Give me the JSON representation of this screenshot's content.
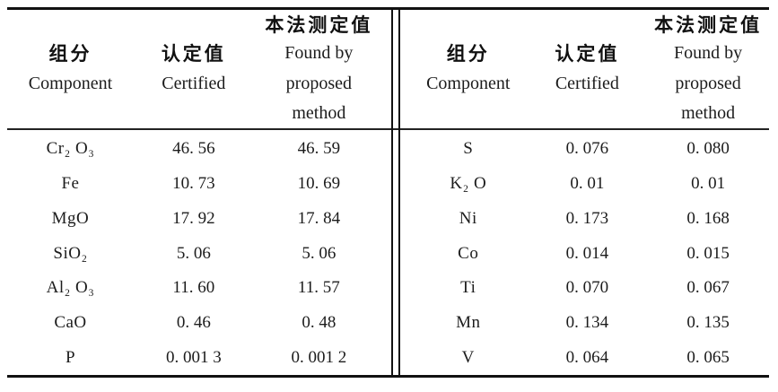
{
  "colors": {
    "background": "#ffffff",
    "text": "#1c1c1c",
    "rule": "#111111"
  },
  "header": {
    "component_zh": "组分",
    "component_en": "Component",
    "certified_zh": "认定值",
    "certified_en": "Certified",
    "found_zh": "本法测定值",
    "found_en_line1": "Found by",
    "found_en_line2": "proposed",
    "found_en_line3": "method"
  },
  "left_rows": [
    {
      "component": "Cr₂ O₃",
      "certified": "46. 56",
      "found": "46. 59"
    },
    {
      "component": "Fe",
      "certified": "10. 73",
      "found": "10. 69"
    },
    {
      "component": "MgO",
      "certified": "17. 92",
      "found": "17. 84"
    },
    {
      "component": "SiO₂",
      "certified": "5. 06",
      "found": "5. 06"
    },
    {
      "component": "Al₂ O₃",
      "certified": "11. 60",
      "found": "11. 57"
    },
    {
      "component": "CaO",
      "certified": "0. 46",
      "found": "0. 48"
    },
    {
      "component": "P",
      "certified": "0. 001 3",
      "found": "0. 001 2"
    }
  ],
  "right_rows": [
    {
      "component": "S",
      "certified": "0. 076",
      "found": "0. 080"
    },
    {
      "component": "K₂ O",
      "certified": "0. 01",
      "found": "0. 01"
    },
    {
      "component": "Ni",
      "certified": "0. 173",
      "found": "0. 168"
    },
    {
      "component": "Co",
      "certified": "0. 014",
      "found": "0. 015"
    },
    {
      "component": "Ti",
      "certified": "0. 070",
      "found": "0. 067"
    },
    {
      "component": "Mn",
      "certified": "0. 134",
      "found": "0. 135"
    },
    {
      "component": "V",
      "certified": "0. 064",
      "found": "0. 065"
    }
  ],
  "chart_data": {
    "type": "table",
    "columns": [
      "组分 Component",
      "认定值 Certified",
      "本法测定值 Found by proposed method"
    ],
    "rows": [
      [
        "Cr2O3",
        46.56,
        46.59
      ],
      [
        "Fe",
        10.73,
        10.69
      ],
      [
        "MgO",
        17.92,
        17.84
      ],
      [
        "SiO2",
        5.06,
        5.06
      ],
      [
        "Al2O3",
        11.6,
        11.57
      ],
      [
        "CaO",
        0.46,
        0.48
      ],
      [
        "P",
        0.0013,
        0.0012
      ],
      [
        "S",
        0.076,
        0.08
      ],
      [
        "K2O",
        0.01,
        0.01
      ],
      [
        "Ni",
        0.173,
        0.168
      ],
      [
        "Co",
        0.014,
        0.015
      ],
      [
        "Ti",
        0.07,
        0.067
      ],
      [
        "Mn",
        0.134,
        0.135
      ],
      [
        "V",
        0.064,
        0.065
      ]
    ]
  }
}
